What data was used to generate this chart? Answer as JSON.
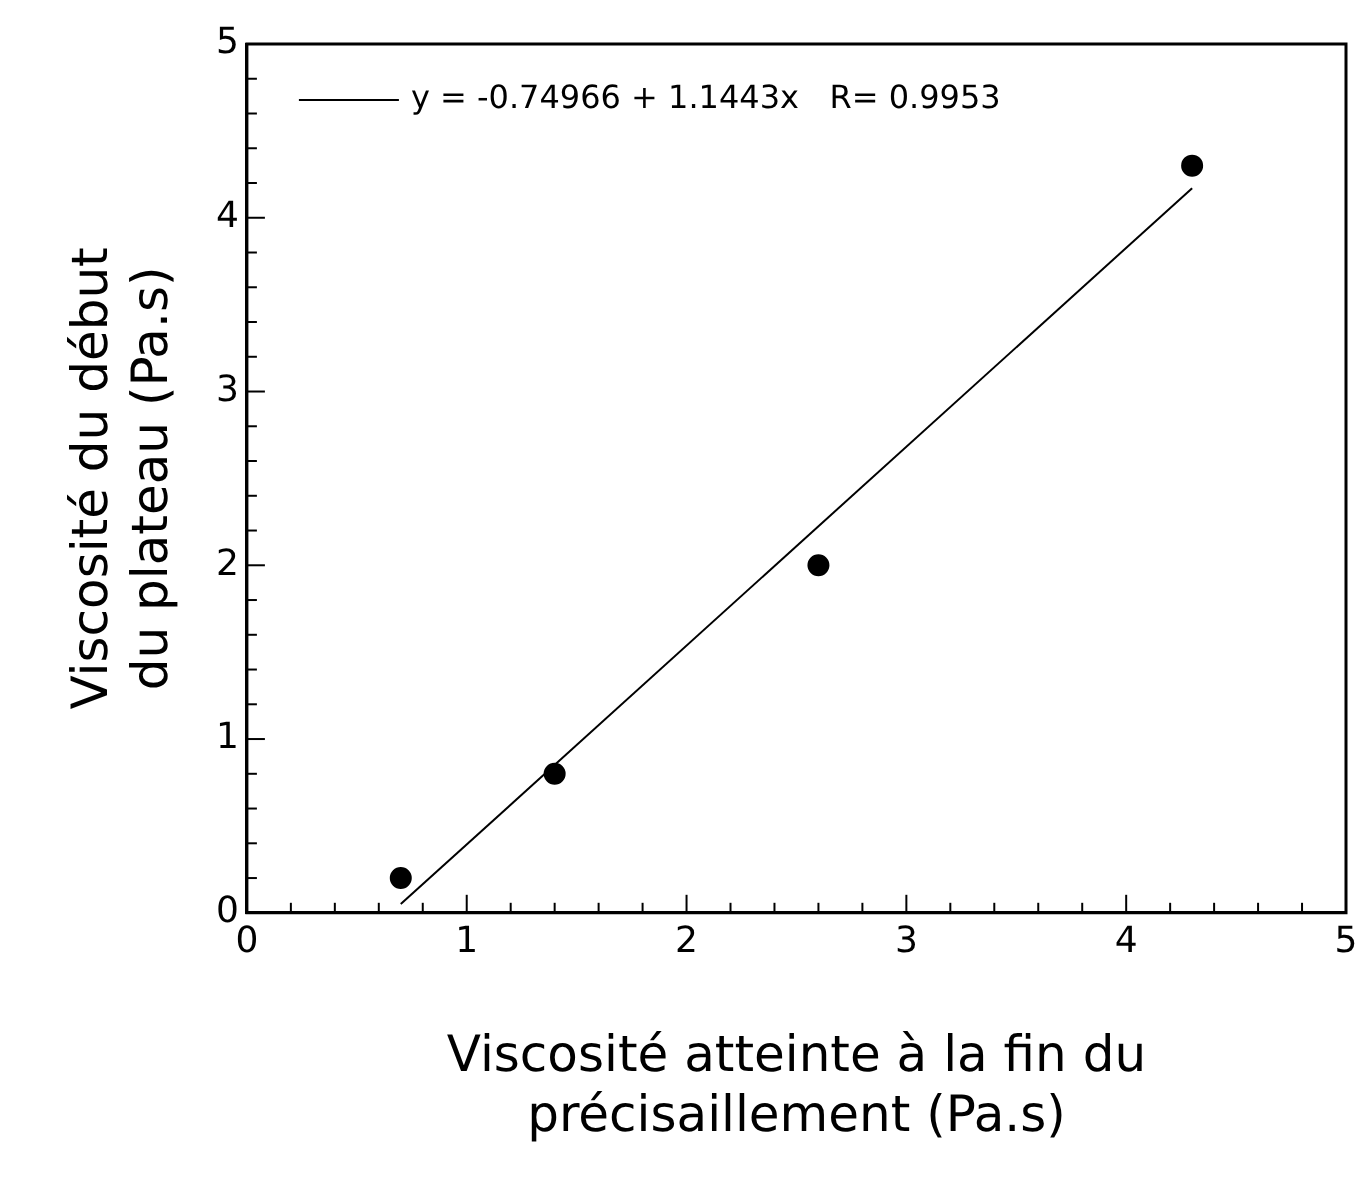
{
  "chart_data": {
    "type": "scatter",
    "xlabel": "Viscosité atteinte à la fin du\nprécisaillement (Pa.s)",
    "ylabel": "Viscosité du début\ndu plateau (Pa.s)",
    "xlim": [
      0,
      5
    ],
    "ylim": [
      0,
      5
    ],
    "xticks": [
      0,
      {
        "value": 0.2,
        "label": null
      },
      {
        "value": 0.4,
        "label": null
      },
      {
        "value": 0.6,
        "label": null
      },
      {
        "value": 0.8,
        "label": null
      },
      1,
      {
        "value": 1.2,
        "label": null
      },
      {
        "value": 1.4,
        "label": null
      },
      {
        "value": 1.6,
        "label": null
      },
      {
        "value": 1.8,
        "label": null
      },
      2,
      {
        "value": 2.2,
        "label": null
      },
      {
        "value": 2.4,
        "label": null
      },
      {
        "value": 2.6,
        "label": null
      },
      {
        "value": 2.8,
        "label": null
      },
      3,
      {
        "value": 3.2,
        "label": null
      },
      {
        "value": 3.4,
        "label": null
      },
      {
        "value": 3.6,
        "label": null
      },
      {
        "value": 3.8,
        "label": null
      },
      4,
      {
        "value": 4.2,
        "label": null
      },
      {
        "value": 4.4,
        "label": null
      },
      {
        "value": 4.6,
        "label": null
      },
      {
        "value": 4.8,
        "label": null
      },
      5
    ],
    "yticks": [
      0,
      {
        "value": 0.2,
        "label": null
      },
      {
        "value": 0.4,
        "label": null
      },
      {
        "value": 0.6,
        "label": null
      },
      {
        "value": 0.8,
        "label": null
      },
      1,
      {
        "value": 1.2,
        "label": null
      },
      {
        "value": 1.4,
        "label": null
      },
      {
        "value": 1.6,
        "label": null
      },
      {
        "value": 1.8,
        "label": null
      },
      2,
      {
        "value": 2.2,
        "label": null
      },
      {
        "value": 2.4,
        "label": null
      },
      {
        "value": 2.6,
        "label": null
      },
      {
        "value": 2.8,
        "label": null
      },
      3,
      {
        "value": 3.2,
        "label": null
      },
      {
        "value": 3.4,
        "label": null
      },
      {
        "value": 3.6,
        "label": null
      },
      {
        "value": 3.8,
        "label": null
      },
      4,
      {
        "value": 4.2,
        "label": null
      },
      {
        "value": 4.4,
        "label": null
      },
      {
        "value": 4.6,
        "label": null
      },
      {
        "value": 4.8,
        "label": null
      },
      5
    ],
    "legend": "top left",
    "series": [
      {
        "color": "#000000",
        "marker": "circle",
        "x": [
          0.7,
          1.4,
          2.6,
          4.3
        ],
        "values": [
          0.2,
          0.8,
          2.0,
          4.3
        ]
      },
      {
        "type": "line",
        "name": "y = -0.74966 + 1.1443x   R= 0.9953",
        "color": "#000000",
        "marker": "none",
        "line_style": "solid",
        "x": [
          0.7,
          4.3
        ],
        "values": [
          0.05,
          4.17
        ]
      }
    ]
  }
}
